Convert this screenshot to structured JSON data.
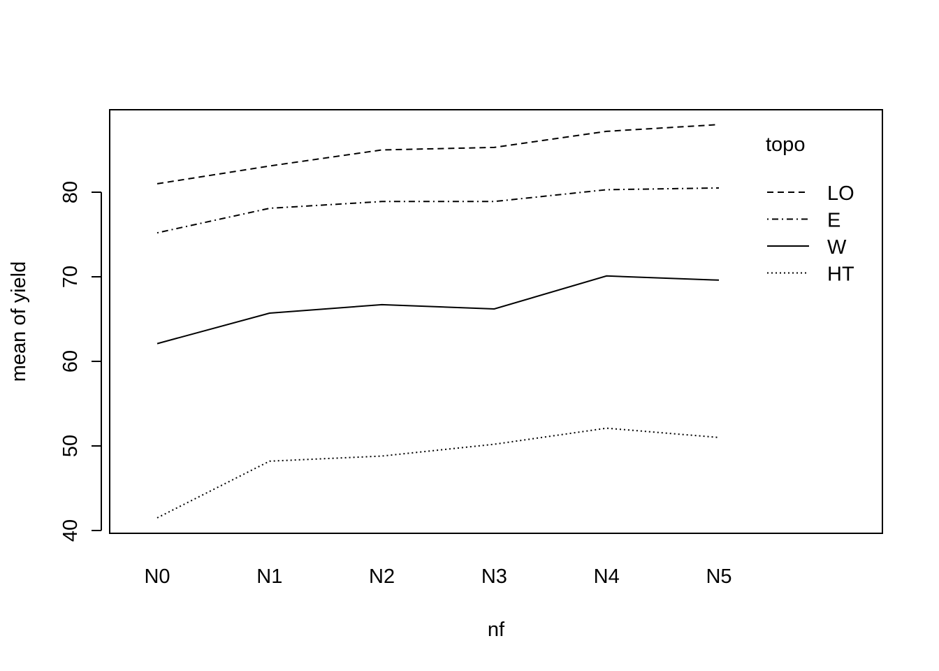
{
  "chart_data": {
    "type": "line",
    "title": "",
    "xlabel": "nf",
    "ylabel": "mean of  yield",
    "categories": [
      "N0",
      "N1",
      "N2",
      "N3",
      "N4",
      "N5"
    ],
    "ylim": [
      40,
      89
    ],
    "yticks": [
      40,
      50,
      60,
      70,
      80
    ],
    "grid": false,
    "legend": {
      "title": "topo",
      "position": "top-right",
      "items": [
        "LO",
        "E",
        "W",
        "HT"
      ]
    },
    "series": [
      {
        "name": "LO",
        "dash": "dashed",
        "values": [
          81.0,
          83.1,
          85.0,
          85.3,
          87.2,
          88.0
        ]
      },
      {
        "name": "E",
        "dash": "dotdash",
        "values": [
          75.2,
          78.1,
          78.9,
          78.9,
          80.3,
          80.5
        ]
      },
      {
        "name": "W",
        "dash": "solid",
        "values": [
          62.1,
          65.7,
          66.7,
          66.2,
          70.1,
          69.6
        ]
      },
      {
        "name": "HT",
        "dash": "dotted",
        "values": [
          41.5,
          48.2,
          48.8,
          50.2,
          52.1,
          51.0
        ]
      }
    ]
  }
}
